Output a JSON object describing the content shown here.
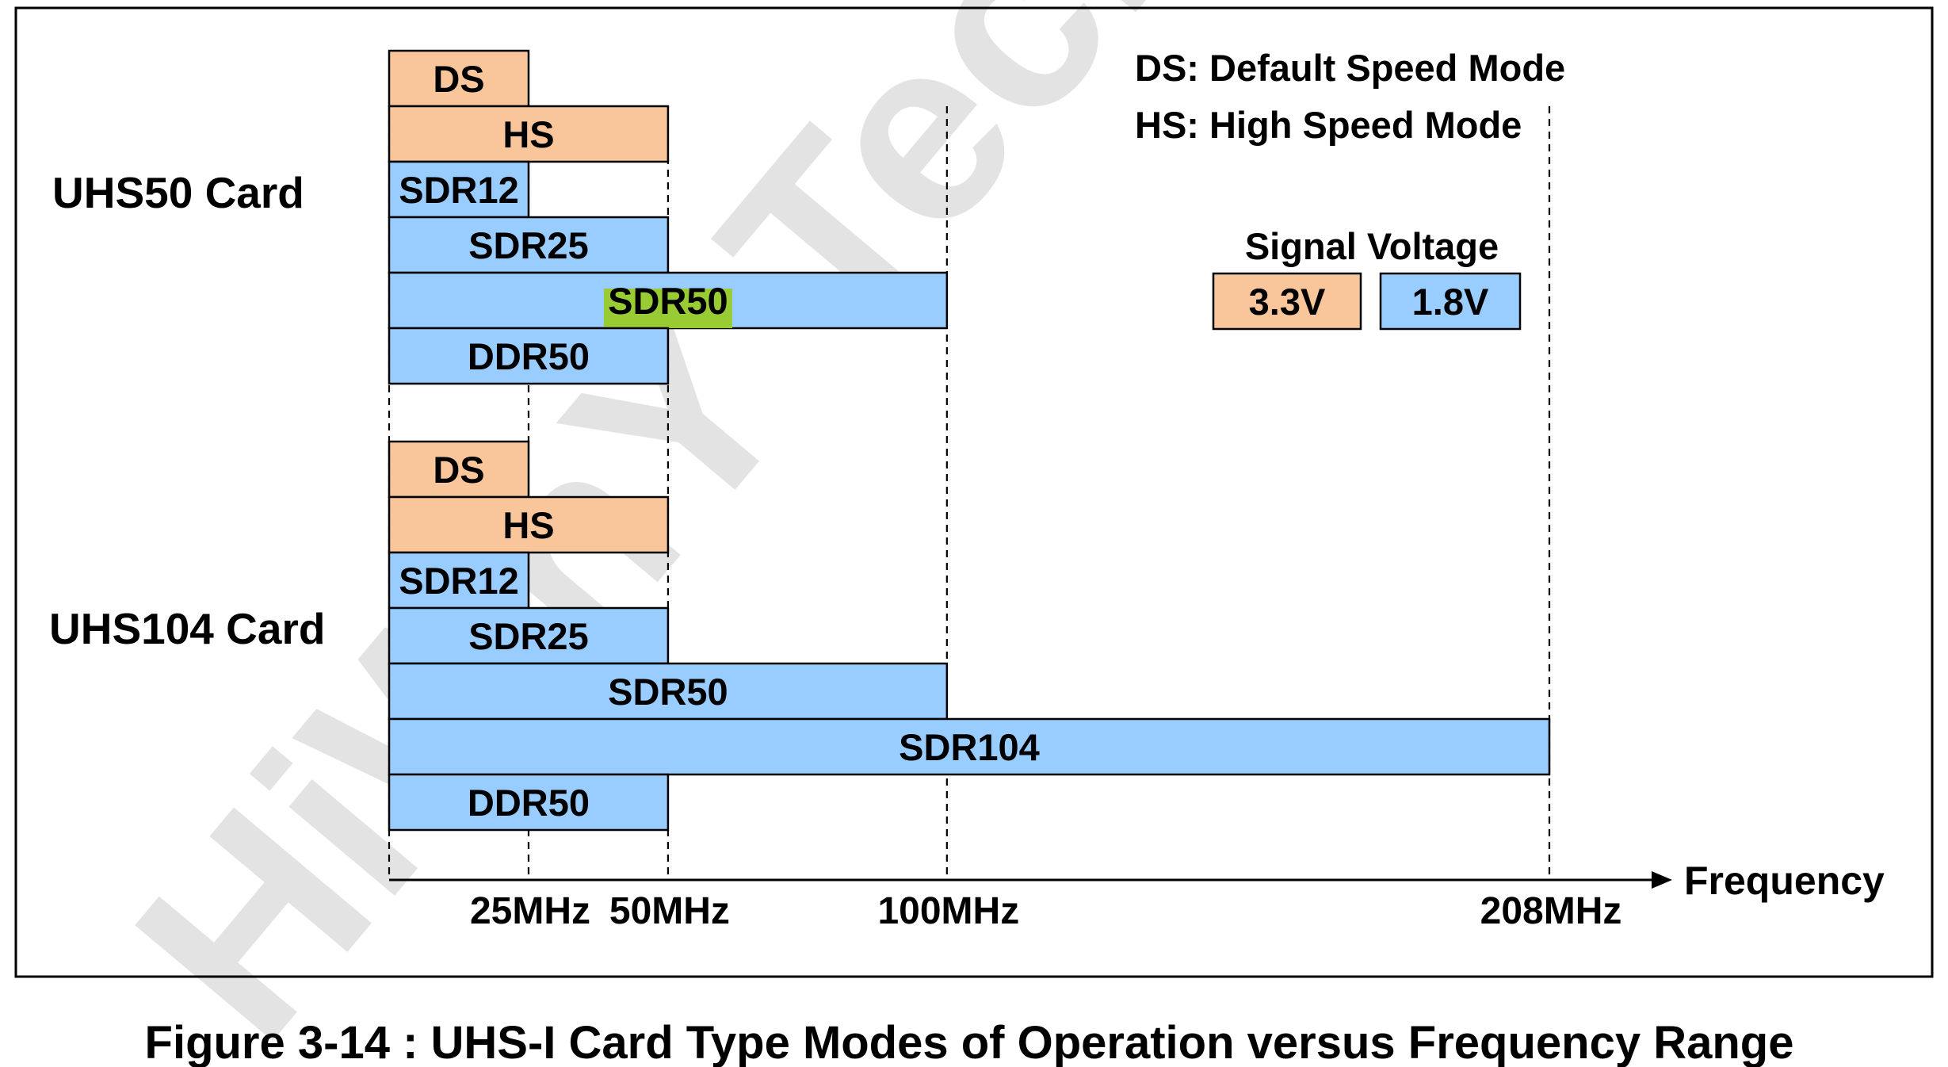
{
  "colors": {
    "voltage_3v3": "#F9C69B",
    "voltage_1v8": "#99CCFF",
    "highlight": "#99CC33",
    "border": "#000000",
    "watermark": "#E3E3E3"
  },
  "legend": {
    "mode_definitions": [
      "DS: Default Speed Mode",
      "HS: High Speed Mode"
    ],
    "voltage_title": "Signal Voltage",
    "voltages": [
      {
        "label": "3.3V",
        "color_key": "voltage_3v3"
      },
      {
        "label": "1.8V",
        "color_key": "voltage_1v8"
      }
    ]
  },
  "axis": {
    "label": "Frequency",
    "max_mhz": 208,
    "ticks": [
      {
        "value_mhz": 25,
        "label": "25MHz"
      },
      {
        "value_mhz": 50,
        "label": "50MHz"
      },
      {
        "value_mhz": 100,
        "label": "100MHz"
      },
      {
        "value_mhz": 208,
        "label": "208MHz"
      }
    ]
  },
  "cards": [
    {
      "name": "UHS50 Card",
      "modes": [
        {
          "label": "DS",
          "max_mhz": 25,
          "voltage": "3.3V"
        },
        {
          "label": "HS",
          "max_mhz": 50,
          "voltage": "3.3V"
        },
        {
          "label": "SDR12",
          "max_mhz": 25,
          "voltage": "1.8V"
        },
        {
          "label": "SDR25",
          "max_mhz": 50,
          "voltage": "1.8V"
        },
        {
          "label": "SDR50",
          "max_mhz": 100,
          "voltage": "1.8V",
          "highlight": true
        },
        {
          "label": "DDR50",
          "max_mhz": 50,
          "voltage": "1.8V"
        }
      ]
    },
    {
      "name": "UHS104 Card",
      "modes": [
        {
          "label": "DS",
          "max_mhz": 25,
          "voltage": "3.3V"
        },
        {
          "label": "HS",
          "max_mhz": 50,
          "voltage": "3.3V"
        },
        {
          "label": "SDR12",
          "max_mhz": 25,
          "voltage": "1.8V"
        },
        {
          "label": "SDR25",
          "max_mhz": 50,
          "voltage": "1.8V"
        },
        {
          "label": "SDR50",
          "max_mhz": 100,
          "voltage": "1.8V"
        },
        {
          "label": "SDR104",
          "max_mhz": 208,
          "voltage": "1.8V"
        },
        {
          "label": "DDR50",
          "max_mhz": 50,
          "voltage": "1.8V"
        }
      ]
    }
  ],
  "caption": "Figure 3-14 : UHS-I Card Type Modes of Operation versus Frequency Range",
  "watermark": "HiWhY Tech"
}
